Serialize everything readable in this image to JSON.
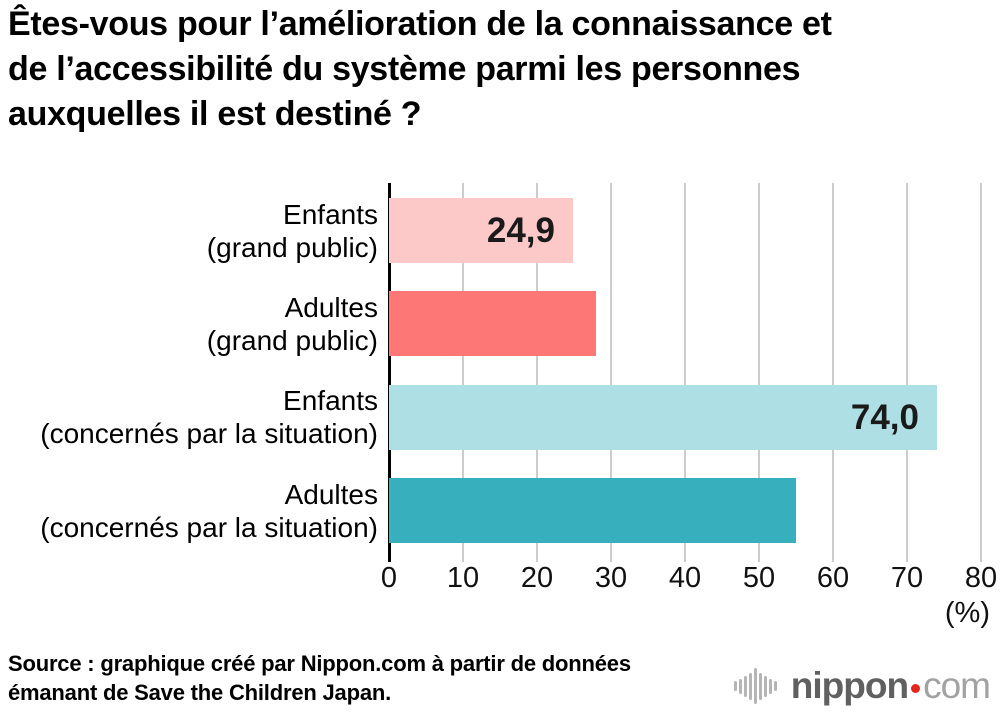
{
  "title": {
    "lines": [
      "Êtes-vous pour l’amélioration de la connaissance et",
      "de l’accessibilité du système parmi les personnes",
      "auxquelles il est destiné ?"
    ]
  },
  "chart_data": {
    "type": "bar",
    "orientation": "horizontal",
    "title": "Êtes-vous pour l’amélioration de la connaissance et de l’accessibilité du système parmi les personnes auxquelles il est destiné ?",
    "categories": [
      "Enfants (grand public)",
      "Adultes (grand public)",
      "Enfants (concernés par la situation)",
      "Adultes (concernés par la situation)"
    ],
    "values": [
      24.9,
      28.0,
      74.0,
      55.0
    ],
    "rows": [
      {
        "label_lines": [
          "Enfants",
          "(grand public)"
        ],
        "value": 24.9,
        "data_label": "24,9",
        "color": "#fdc8c8"
      },
      {
        "label_lines": [
          "Adultes",
          "(grand public)"
        ],
        "value": 28.0,
        "data_label": "",
        "color": "#fe7777"
      },
      {
        "label_lines": [
          "Enfants",
          "(concernés par la situation)"
        ],
        "value": 74.0,
        "data_label": "74,0",
        "color": "#aedfe4"
      },
      {
        "label_lines": [
          "Adultes",
          "(concernés par la situation)"
        ],
        "value": 55.0,
        "data_label": "",
        "color": "#37afbd"
      }
    ],
    "xlim": [
      0,
      80
    ],
    "x_ticks": [
      "0",
      "10",
      "20",
      "30",
      "40",
      "50",
      "60",
      "70",
      "80"
    ],
    "x_unit_label": "(%)",
    "grid": true,
    "gridline_color": "#cccccc",
    "axis_color": "#000000",
    "value_label_color": "#1a1a1a",
    "legend": "none"
  },
  "source": {
    "lines": [
      "Source : graphique créé par Nippon.com à partir de données",
      "émanant de Save the Children Japan."
    ]
  },
  "logo": {
    "icon": "soundwave-bars-icon",
    "icon_color": "#b5b5b5",
    "name_text": "nippon",
    "name_color": "#606060",
    "dot_color": "#e8251d",
    "tld_text": "com",
    "tld_color": "#a2a2a2"
  }
}
